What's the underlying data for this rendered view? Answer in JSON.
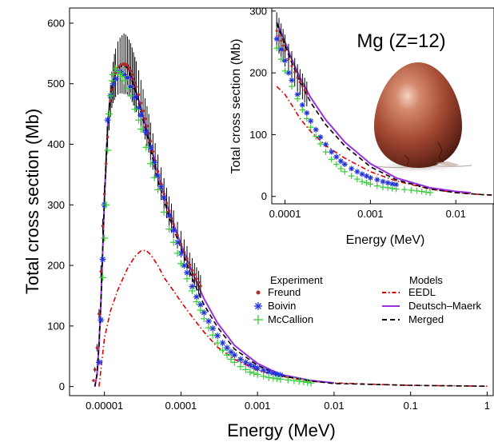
{
  "chart_data": [
    {
      "type": "scatter",
      "xlabel": "Energy (MeV)",
      "ylabel": "Total cross section  (Mb)",
      "xscale": "log",
      "xlim": [
        3.5e-06,
        1.2
      ],
      "ylim": [
        -15,
        625
      ],
      "x_ticks": [
        1e-05,
        0.0001,
        0.001,
        0.01,
        0.1,
        1
      ],
      "x_tick_labels": [
        "0.00001",
        "0.0001",
        "0.001",
        "0.01",
        "0.1",
        "1"
      ],
      "y_ticks": [
        0,
        100,
        200,
        300,
        400,
        500,
        600
      ],
      "y_tick_labels": [
        "0",
        "100",
        "200",
        "300",
        "400",
        "500",
        "600"
      ],
      "legend_placement": "lower-right",
      "legend": {
        "experiment_header": "Experiment",
        "models_header": "Models",
        "experiment": [
          {
            "name": "Freund",
            "marker": "dot",
            "color": "#b52a2a"
          },
          {
            "name": "Boivin",
            "marker": "asterisk",
            "color": "#2233dd"
          },
          {
            "name": "McCallion",
            "marker": "plus",
            "color": "#33cc33"
          }
        ],
        "models": [
          {
            "name": "EEDL",
            "style": "dash-dot",
            "color": "#dd0000"
          },
          {
            "name": "Deutsch–Maerk",
            "style": "solid",
            "color": "#9b30e0"
          },
          {
            "name": "Merged",
            "style": "dashed",
            "color": "#000000"
          }
        ]
      },
      "series": [
        {
          "name": "EEDL",
          "color": "#dd0000",
          "x": [
            8.5e-06,
            1e-05,
            1.2e-05,
            1.5e-05,
            2e-05,
            2.5e-05,
            3e-05,
            3.5e-05,
            4e-05,
            5e-05,
            6e-05,
            8e-05,
            0.0001,
            0.00015,
            0.0002,
            0.0003,
            0.0005,
            0.001,
            0.002,
            0.005,
            0.01,
            0.05,
            0.1,
            0.5,
            1
          ],
          "y": [
            0,
            80,
            125,
            160,
            195,
            215,
            224,
            225,
            218,
            200,
            180,
            158,
            140,
            110,
            90,
            65,
            45,
            27,
            17,
            9,
            6,
            3,
            2,
            1,
            0.5
          ]
        },
        {
          "name": "Deutsch–Maerk",
          "color": "#9b30e0",
          "x": [
            7.5e-06,
            8e-06,
            8.5e-06,
            9e-06,
            1e-05,
            1.1e-05,
            1.2e-05,
            1.4e-05,
            1.6e-05,
            1.8e-05,
            2e-05,
            2.2e-05,
            2.5e-05,
            3e-05,
            4e-05,
            5e-05,
            7e-05,
            0.0001,
            0.00015,
            0.0002,
            0.0003,
            0.0005,
            0.001,
            0.002,
            0.005,
            0.01
          ],
          "y": [
            0,
            20,
            70,
            140,
            310,
            430,
            485,
            518,
            530,
            532,
            528,
            515,
            495,
            460,
            400,
            350,
            288,
            235,
            180,
            145,
            105,
            68,
            38,
            20,
            10,
            6
          ]
        },
        {
          "name": "Merged",
          "color": "#000000",
          "x": [
            7.5e-06,
            8e-06,
            8.5e-06,
            9e-06,
            1e-05,
            1.1e-05,
            1.2e-05,
            1.4e-05,
            1.6e-05,
            1.8e-05,
            2e-05,
            2.2e-05,
            2.5e-05,
            3e-05,
            4e-05,
            5e-05,
            7e-05,
            0.0001,
            0.00015,
            0.0002,
            0.0003,
            0.0005,
            0.001,
            0.002,
            0.005,
            0.01,
            0.05,
            0.1,
            0.5,
            1
          ],
          "y": [
            0,
            20,
            70,
            140,
            310,
            430,
            485,
            516,
            528,
            530,
            526,
            512,
            490,
            452,
            392,
            340,
            280,
            228,
            170,
            135,
            98,
            62,
            35,
            18,
            9,
            5,
            3,
            2,
            1,
            0.5
          ]
        },
        {
          "name": "Freund",
          "color": "#b52a2a",
          "x": [
            7.2e-06,
            7.5e-06,
            8e-06,
            8.5e-06,
            9e-06,
            9.5e-06,
            1e-05,
            1.05e-05,
            1.1e-05,
            1.15e-05,
            1.2e-05,
            1.25e-05,
            1.3e-05,
            1.35e-05,
            1.4e-05,
            1.5e-05,
            1.6e-05,
            1.7e-05,
            1.8e-05,
            1.9e-05,
            2e-05,
            2.1e-05,
            2.2e-05,
            2.3e-05,
            2.4e-05,
            2.5e-05,
            2.6e-05,
            2.8e-05,
            3e-05,
            3.2e-05,
            3.4e-05,
            3.6e-05,
            3.8e-05,
            4e-05,
            4.3e-05,
            4.6e-05,
            5e-05,
            5.5e-05,
            6e-05,
            6.5e-05,
            7e-05,
            7.5e-05,
            8e-05,
            9e-05,
            0.0001,
            0.00011,
            0.00012,
            0.00013,
            0.00014,
            0.00015,
            0.00016,
            0.00017,
            0.00018
          ],
          "y": [
            10,
            28,
            64,
            120,
            190,
            265,
            318,
            368,
            412,
            445,
            472,
            490,
            502,
            511,
            518,
            526,
            530,
            532,
            533,
            532,
            530,
            526,
            521,
            515,
            508,
            501,
            495,
            482,
            468,
            455,
            442,
            430,
            418,
            405,
            388,
            373,
            355,
            335,
            318,
            303,
            290,
            278,
            268,
            250,
            235,
            222,
            211,
            201,
            192,
            185,
            178,
            172,
            166
          ],
          "error": [
            2,
            4,
            6,
            8,
            10,
            12,
            14,
            16,
            18,
            22,
            26,
            30,
            34,
            38,
            40,
            44,
            46,
            48,
            50,
            49,
            48,
            47,
            46,
            45,
            44,
            43,
            42,
            40,
            38,
            36,
            34,
            33,
            32,
            31,
            30,
            29,
            28,
            27,
            26,
            25,
            24,
            24,
            23,
            22,
            22,
            21,
            21,
            20,
            20,
            19,
            19,
            19,
            18
          ]
        },
        {
          "name": "Boivin",
          "color": "#2233dd",
          "x": [
            8.5e-06,
            9e-06,
            9.5e-06,
            1e-05,
            1.1e-05,
            1.2e-05,
            1.3e-05,
            1.4e-05,
            1.6e-05,
            1.8e-05,
            2e-05,
            2.2e-05,
            2.5e-05,
            2.8e-05,
            3e-05,
            3.5e-05,
            4e-05,
            4.5e-05,
            5e-05,
            5.5e-05,
            6e-05,
            7e-05,
            8e-05,
            9e-05,
            0.0001,
            0.00011,
            0.00012,
            0.00014,
            0.00016,
            0.00018,
            0.0002,
            0.00023,
            0.00026,
            0.0003,
            0.00035,
            0.0004,
            0.00045,
            0.0005,
            0.0006,
            0.0007,
            0.0008,
            0.0009,
            0.001,
            0.0012,
            0.0014,
            0.0016,
            0.0018,
            0.002
          ],
          "y": [
            40,
            110,
            210,
            300,
            440,
            480,
            500,
            508,
            520,
            515,
            510,
            495,
            478,
            460,
            448,
            420,
            395,
            370,
            348,
            330,
            312,
            282,
            258,
            238,
            220,
            200,
            188,
            165,
            148,
            135,
            122,
            108,
            96,
            84,
            72,
            64,
            57,
            52,
            45,
            40,
            36,
            33,
            30,
            27,
            24,
            22,
            20,
            19
          ]
        },
        {
          "name": "McCallion",
          "color": "#33cc33",
          "x": [
            9.5e-06,
            1e-05,
            1.05e-05,
            1.1e-05,
            1.15e-05,
            1.2e-05,
            1.25e-05,
            1.3e-05,
            1.4e-05,
            1.5e-05,
            1.6e-05,
            1.7e-05,
            1.8e-05,
            2e-05,
            2.2e-05,
            2.5e-05,
            2.8e-05,
            3e-05,
            3.5e-05,
            4e-05,
            4.5e-05,
            5e-05,
            6e-05,
            7e-05,
            8e-05,
            9e-05,
            0.0001,
            0.00012,
            0.00014,
            0.00016,
            0.00018,
            0.0002,
            0.00023,
            0.00026,
            0.0003,
            0.00035,
            0.0004,
            0.00045,
            0.0005,
            0.0006,
            0.0007,
            0.0008,
            0.0009,
            0.001,
            0.0012,
            0.0014,
            0.0016,
            0.0018,
            0.002,
            0.0025,
            0.003,
            0.0035,
            0.004,
            0.0045,
            0.005
          ],
          "y": [
            180,
            245,
            300,
            390,
            450,
            480,
            505,
            515,
            525,
            520,
            516,
            512,
            505,
            492,
            480,
            458,
            440,
            425,
            395,
            368,
            345,
            325,
            288,
            260,
            238,
            220,
            203,
            178,
            158,
            140,
            126,
            112,
            97,
            85,
            72,
            60,
            52,
            45,
            40,
            33,
            28,
            24,
            22,
            20,
            17,
            15,
            14,
            13,
            12,
            11,
            10,
            9,
            8,
            7,
            6
          ]
        }
      ]
    },
    {
      "type": "scatter",
      "title": "Mg (Z=12)",
      "xlabel": "Energy (MeV)",
      "ylabel": "Total cross section  (Mb)",
      "xscale": "log",
      "xlim": [
        7e-05,
        0.028
      ],
      "ylim": [
        -12,
        305
      ],
      "x_ticks": [
        0.0001,
        0.001,
        0.01
      ],
      "x_tick_labels": [
        "0.0001",
        "0.001",
        "0.01"
      ],
      "y_ticks": [
        0,
        100,
        200,
        300
      ],
      "y_tick_labels": [
        "0",
        "100",
        "200",
        "300"
      ],
      "image": "egg-illustration",
      "series": [
        {
          "name": "EEDL",
          "color": "#dd0000",
          "x": [
            8e-05,
            0.0001,
            0.00012,
            0.00015,
            0.0002,
            0.0003,
            0.0005,
            0.001,
            0.002,
            0.005,
            0.01,
            0.02,
            0.028
          ],
          "y": [
            178,
            165,
            148,
            126,
            105,
            82,
            62,
            40,
            25,
            12,
            6,
            3,
            2
          ]
        },
        {
          "name": "Deutsch–Maerk",
          "color": "#9b30e0",
          "x": [
            8e-05,
            0.0001,
            0.00012,
            0.00015,
            0.0002,
            0.0003,
            0.0005,
            0.001,
            0.002,
            0.005,
            0.01,
            0.015
          ],
          "y": [
            282,
            250,
            222,
            192,
            160,
            124,
            88,
            53,
            30,
            14,
            8,
            6
          ]
        },
        {
          "name": "Merged",
          "color": "#000000",
          "x": [
            8e-05,
            0.0001,
            0.00012,
            0.00015,
            0.0002,
            0.0003,
            0.0005,
            0.001,
            0.002,
            0.005,
            0.01,
            0.02,
            0.028
          ],
          "y": [
            280,
            245,
            216,
            186,
            152,
            116,
            82,
            48,
            27,
            12,
            6,
            3,
            2
          ]
        },
        {
          "name": "Freund",
          "color": "#b52a2a",
          "x": [
            8e-05,
            8.5e-05,
            9e-05,
            9.5e-05,
            0.0001,
            0.00011,
            0.00012,
            0.00013,
            0.00014,
            0.00015,
            0.00016,
            0.00017,
            0.00018
          ],
          "y": [
            268,
            260,
            252,
            244,
            236,
            222,
            211,
            201,
            192,
            185,
            178,
            172,
            166
          ],
          "error": [
            30,
            29,
            28,
            27,
            26,
            25,
            24,
            23,
            22,
            21,
            21,
            20,
            20
          ]
        },
        {
          "name": "Boivin",
          "color": "#2233dd",
          "x": [
            8e-05,
            9e-05,
            0.0001,
            0.00011,
            0.00012,
            0.00014,
            0.00016,
            0.00018,
            0.0002,
            0.00023,
            0.00026,
            0.0003,
            0.00035,
            0.0004,
            0.00045,
            0.0005,
            0.0006,
            0.0007,
            0.0008,
            0.0009,
            0.001,
            0.0012,
            0.0014,
            0.0016,
            0.0018,
            0.002
          ],
          "y": [
            255,
            238,
            220,
            200,
            188,
            165,
            148,
            135,
            122,
            108,
            96,
            84,
            72,
            64,
            57,
            52,
            45,
            40,
            36,
            33,
            30,
            27,
            24,
            22,
            20,
            19
          ]
        },
        {
          "name": "McCallion",
          "color": "#33cc33",
          "x": [
            8e-05,
            9e-05,
            0.0001,
            0.00012,
            0.00014,
            0.00016,
            0.00018,
            0.0002,
            0.00023,
            0.00026,
            0.0003,
            0.00035,
            0.0004,
            0.00045,
            0.0005,
            0.0006,
            0.0007,
            0.0008,
            0.0009,
            0.001,
            0.0012,
            0.0014,
            0.0016,
            0.0018,
            0.002,
            0.0025,
            0.003,
            0.0035,
            0.004,
            0.0045,
            0.005
          ],
          "y": [
            240,
            222,
            203,
            178,
            158,
            140,
            126,
            112,
            97,
            85,
            72,
            60,
            52,
            45,
            40,
            33,
            28,
            24,
            22,
            20,
            17,
            15,
            14,
            13,
            12,
            11,
            10,
            9,
            8,
            7,
            6
          ]
        }
      ]
    }
  ]
}
